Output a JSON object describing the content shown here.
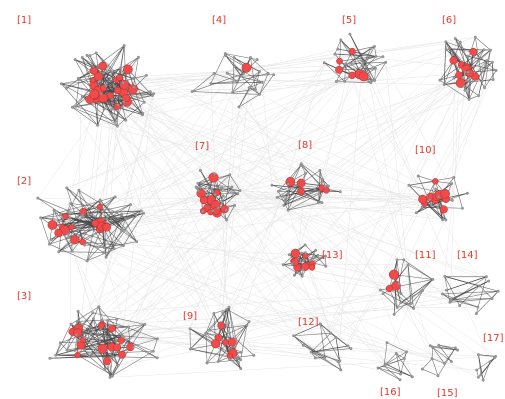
{
  "colors": {
    "label": "#e0392b",
    "node_hot": "#ef4b4b",
    "node_gray": "#9a9a9a",
    "edge_bg": "#e6e6e6",
    "edge_fg": "#444444"
  },
  "clusters": [
    {
      "label": "[1]",
      "hot": 24,
      "gray": 42
    },
    {
      "label": "[2]",
      "hot": 18,
      "gray": 40
    },
    {
      "label": "[3]",
      "hot": 16,
      "gray": 36
    },
    {
      "label": "[4]",
      "hot": 1,
      "gray": 22
    },
    {
      "label": "[5]",
      "hot": 6,
      "gray": 20
    },
    {
      "label": "[6]",
      "hot": 10,
      "gray": 26
    },
    {
      "label": "[7]",
      "hot": 12,
      "gray": 22
    },
    {
      "label": "[8]",
      "hot": 5,
      "gray": 20
    },
    {
      "label": "[9]",
      "hot": 7,
      "gray": 22
    },
    {
      "label": "[10]",
      "hot": 10,
      "gray": 16
    },
    {
      "label": "[11]",
      "hot": 3,
      "gray": 14
    },
    {
      "label": "[12]",
      "hot": 0,
      "gray": 14
    },
    {
      "label": "[13]",
      "hot": 9,
      "gray": 14
    },
    {
      "label": "[14]",
      "hot": 0,
      "gray": 14
    },
    {
      "label": "[15]",
      "hot": 0,
      "gray": 10
    },
    {
      "label": "[16]",
      "hot": 0,
      "gray": 10
    },
    {
      "label": "[17]",
      "hot": 0,
      "gray": 8
    }
  ]
}
